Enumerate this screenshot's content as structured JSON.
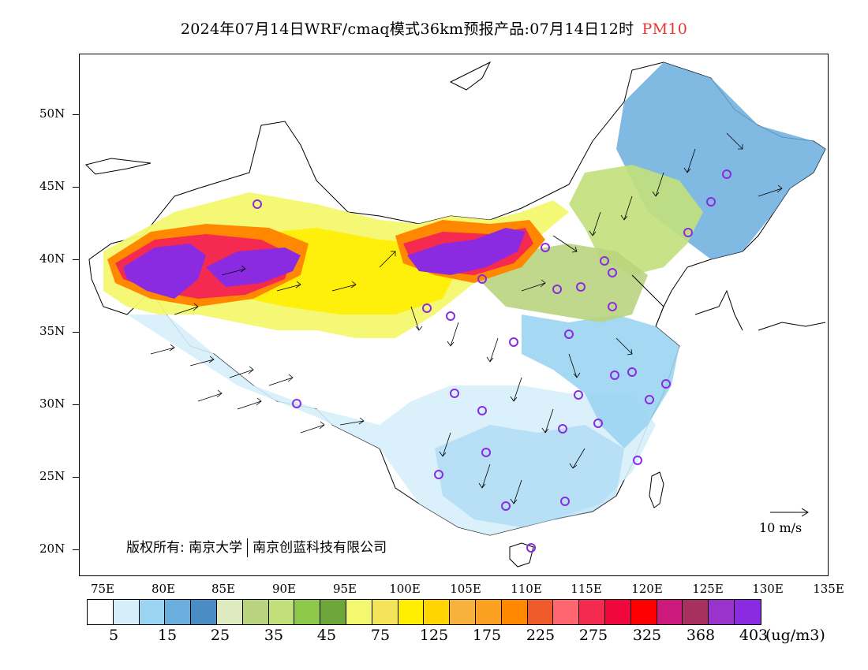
{
  "title": {
    "main": "2024年07月14日WRF/cmaq模式36km预报产品:07月14日12时",
    "variable": "PM10"
  },
  "map": {
    "y_axis_labels": [
      "50N",
      "45N",
      "40N",
      "35N",
      "30N",
      "25N",
      "20N"
    ],
    "x_axis_labels": [
      "75E",
      "80E",
      "85E",
      "90E",
      "95E",
      "100E",
      "105E",
      "110E",
      "115E",
      "120E",
      "125E",
      "130E",
      "135E"
    ],
    "copyright_prefix": "版权所有:",
    "copyright_org1": "南京大学",
    "copyright_org2": "南京创蓝科技有限公司",
    "reference_vector_label": "10 m/s",
    "accent_purple": "#8a2be2"
  },
  "colorbar": {
    "colors": [
      "#ffffff",
      "#d6eefa",
      "#9bd4f2",
      "#6aaede",
      "#4a8cc4",
      "#dfe9c0",
      "#b9d47e",
      "#c2e07a",
      "#8dc84a",
      "#6ea63c",
      "#f4f86e",
      "#f3e45a",
      "#ffee00",
      "#ffd400",
      "#f6b23c",
      "#fba020",
      "#ff8800",
      "#ee5a2a",
      "#ff6670",
      "#f42a50",
      "#f0083c",
      "#ff0000",
      "#cc1a7c",
      "#a83060",
      "#9933cc",
      "#8a2be2"
    ],
    "labels": [
      "5",
      "15",
      "25",
      "35",
      "45",
      "75",
      "125",
      "175",
      "225",
      "275",
      "325",
      "368",
      "403"
    ],
    "unit": "(ug/m3)"
  }
}
